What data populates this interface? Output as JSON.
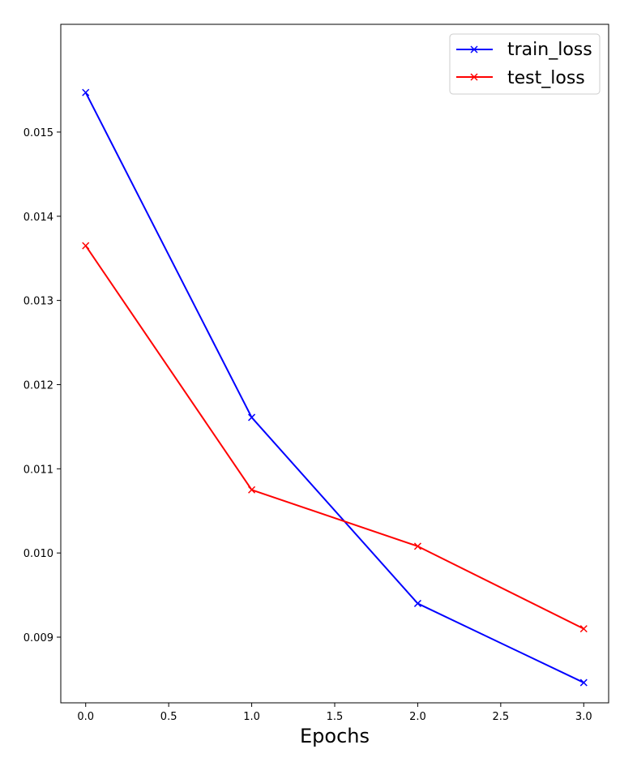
{
  "chart_data": {
    "type": "line",
    "title": "",
    "xlabel": "Epochs",
    "ylabel": "",
    "x": [
      0,
      1,
      2,
      3
    ],
    "xlim": [
      -0.15,
      3.15
    ],
    "ylim": [
      0.00822,
      0.01628
    ],
    "xticks": [
      "0.0",
      "0.5",
      "1.0",
      "1.5",
      "2.0",
      "2.5",
      "3.0"
    ],
    "yticks": [
      "0.009",
      "0.010",
      "0.011",
      "0.012",
      "0.013",
      "0.014",
      "0.015"
    ],
    "grid": false,
    "legend_position": "top-right",
    "marker": "x",
    "series": [
      {
        "name": "train_loss",
        "color": "#0000ff",
        "values": [
          0.01547,
          0.01161,
          0.0094,
          0.00846
        ]
      },
      {
        "name": "test_loss",
        "color": "#ff0000",
        "values": [
          0.01365,
          0.01075,
          0.01008,
          0.0091
        ]
      }
    ]
  }
}
